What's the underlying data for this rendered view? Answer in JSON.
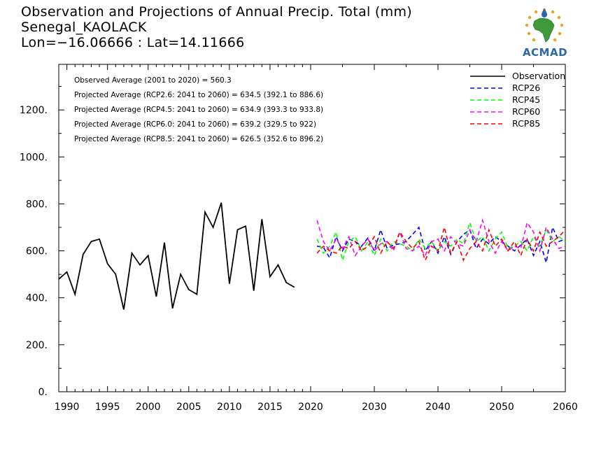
{
  "title": {
    "line1": "Observation and Projections of Annual Precip. Total (mm)",
    "line2": "Senegal_KAOLACK",
    "line3": "Lon=−16.06666 : Lat=14.11666"
  },
  "logo": {
    "text": "ACMAD"
  },
  "chart_data": {
    "type": "line",
    "title": "Observation and Projections of Annual Precip. Total (mm)",
    "xlabel": "",
    "ylabel": "",
    "xlim": [
      1989,
      2060
    ],
    "ylim": [
      0,
      1400
    ],
    "grid": false,
    "legend_position": "top-right",
    "y_ticks": [
      0,
      200,
      400,
      600,
      800,
      1000,
      1200
    ],
    "y_tick_labels": [
      "0.",
      "200.",
      "400.",
      "600.",
      "800.",
      "1000.",
      "1200."
    ],
    "x_ticks": [
      1990,
      1995,
      2000,
      2005,
      2010,
      2015,
      2020,
      2030,
      2040,
      2050,
      2060
    ],
    "x_tick_labels": [
      "1990",
      "1995",
      "2000",
      "2005",
      "2010",
      "2015",
      "2020",
      "2030",
      "2040",
      "2050",
      "2060"
    ],
    "annotations": [
      "Observed Average (2001 to 2020) = 560.3",
      "Projected Average (RCP2.6: 2041 to 2060) = 634.5 (392.1 to 886.6)",
      "Projected Average (RCP4.5: 2041 to 2060) = 634.9 (393.3 to 933.8)",
      "Projected Average (RCP6.0: 2041 to 2060) = 639.2 (329.5 to 922)",
      "Projected Average (RCP8.5: 2041 to 2060) = 626.5 (352.6 to 896.2)"
    ],
    "series": [
      {
        "name": "Observation",
        "color": "#000000",
        "dashed": false,
        "x": [
          1989,
          1990,
          1991,
          1992,
          1993,
          1994,
          1995,
          1996,
          1997,
          1998,
          1999,
          2000,
          2001,
          2002,
          2003,
          2004,
          2005,
          2006,
          2007,
          2008,
          2009,
          2010,
          2011,
          2012,
          2013,
          2014,
          2015,
          2016,
          2017,
          2018,
          2019,
          2020
        ],
        "values": [
          480,
          510,
          415,
          585,
          640,
          650,
          545,
          500,
          350,
          590,
          540,
          580,
          405,
          635,
          355,
          500,
          435,
          415,
          765,
          700,
          805,
          460,
          690,
          705,
          430,
          735,
          490,
          540,
          465,
          445,
          null,
          null
        ]
      },
      {
        "name": "RCP26",
        "color": "#0000ff",
        "dashed": true,
        "x": [
          2021,
          2022,
          2023,
          2024,
          2025,
          2026,
          2027,
          2028,
          2029,
          2030,
          2031,
          2032,
          2033,
          2034,
          2035,
          2036,
          2037,
          2038,
          2039,
          2040,
          2041,
          2042,
          2043,
          2044,
          2045,
          2046,
          2047,
          2048,
          2049,
          2050,
          2051,
          2052,
          2053,
          2054,
          2055,
          2056,
          2057,
          2058,
          2059,
          2060
        ],
        "values": [
          620,
          615,
          570,
          660,
          600,
          650,
          640,
          620,
          655,
          600,
          690,
          610,
          625,
          630,
          640,
          670,
          700,
          600,
          640,
          590,
          660,
          585,
          640,
          670,
          690,
          610,
          650,
          630,
          660,
          640,
          620,
          600,
          625,
          650,
          580,
          640,
          550,
          700,
          640,
          650
        ]
      },
      {
        "name": "RCP45",
        "color": "#00ff00",
        "dashed": true,
        "x": [
          2021,
          2022,
          2023,
          2024,
          2025,
          2026,
          2027,
          2028,
          2029,
          2030,
          2031,
          2032,
          2033,
          2034,
          2035,
          2036,
          2037,
          2038,
          2039,
          2040,
          2041,
          2042,
          2043,
          2044,
          2045,
          2046,
          2047,
          2048,
          2049,
          2050,
          2051,
          2052,
          2053,
          2054,
          2055,
          2056,
          2057,
          2058,
          2059,
          2060
        ],
        "values": [
          650,
          590,
          620,
          680,
          560,
          640,
          660,
          600,
          640,
          580,
          650,
          600,
          640,
          630,
          620,
          600,
          650,
          610,
          640,
          600,
          640,
          620,
          650,
          630,
          720,
          640,
          660,
          600,
          650,
          680,
          610,
          620,
          640,
          600,
          660,
          620,
          690,
          640,
          660,
          640
        ]
      },
      {
        "name": "RCP60",
        "color": "#ff00ff",
        "dashed": true,
        "x": [
          2021,
          2022,
          2023,
          2024,
          2025,
          2026,
          2027,
          2028,
          2029,
          2030,
          2031,
          2032,
          2033,
          2034,
          2035,
          2036,
          2037,
          2038,
          2039,
          2040,
          2041,
          2042,
          2043,
          2044,
          2045,
          2046,
          2047,
          2048,
          2049,
          2050,
          2051,
          2052,
          2053,
          2054,
          2055,
          2056,
          2057,
          2058,
          2059,
          2060
        ],
        "values": [
          730,
          640,
          600,
          650,
          610,
          660,
          580,
          620,
          650,
          600,
          630,
          640,
          600,
          680,
          610,
          600,
          620,
          580,
          640,
          650,
          600,
          660,
          630,
          620,
          690,
          640,
          730,
          640,
          590,
          640,
          600,
          620,
          610,
          720,
          680,
          600,
          700,
          650,
          610,
          620
        ]
      },
      {
        "name": "RCP85",
        "color": "#ff0000",
        "dashed": true,
        "x": [
          2021,
          2022,
          2023,
          2024,
          2025,
          2026,
          2027,
          2028,
          2029,
          2030,
          2031,
          2032,
          2033,
          2034,
          2035,
          2036,
          2037,
          2038,
          2039,
          2040,
          2041,
          2042,
          2043,
          2044,
          2045,
          2046,
          2047,
          2048,
          2049,
          2050,
          2051,
          2052,
          2053,
          2054,
          2055,
          2056,
          2057,
          2058,
          2059,
          2060
        ],
        "values": [
          590,
          620,
          600,
          590,
          620,
          610,
          640,
          600,
          620,
          660,
          590,
          640,
          610,
          680,
          640,
          610,
          640,
          560,
          620,
          600,
          700,
          590,
          640,
          560,
          610,
          640,
          600,
          690,
          620,
          650,
          600,
          640,
          580,
          650,
          600,
          680,
          620,
          640,
          660,
          690
        ]
      }
    ]
  }
}
